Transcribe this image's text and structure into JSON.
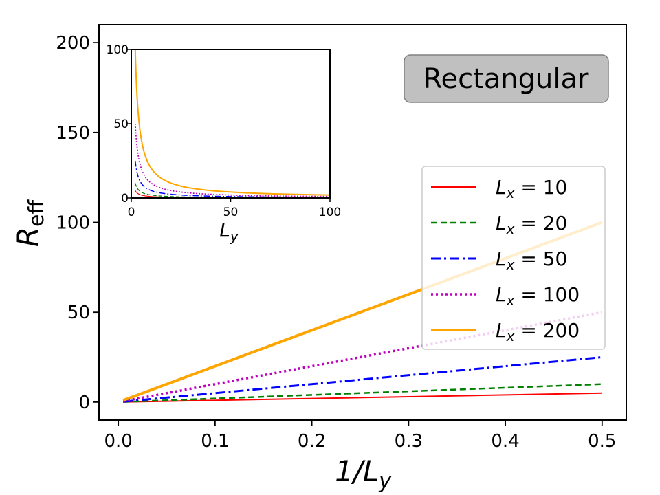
{
  "chart_data": [
    {
      "type": "line",
      "annotation": "Rectangular",
      "xlabel": "1/L",
      "xlabel_sub": "y",
      "ylabel": "R",
      "ylabel_sub": "eff",
      "xlim": [
        -0.02,
        0.525
      ],
      "ylim": [
        -10,
        210
      ],
      "xticks": [
        0.0,
        0.1,
        0.2,
        0.3,
        0.4,
        0.5
      ],
      "xtick_labels": [
        "0.0",
        "0.1",
        "0.2",
        "0.3",
        "0.4",
        "0.5"
      ],
      "yticks": [
        0,
        50,
        100,
        150,
        200
      ],
      "ytick_labels": [
        "0",
        "50",
        "100",
        "150",
        "200"
      ],
      "grid": false,
      "legend_position": "center-right",
      "x_range": [
        0.005,
        0.5
      ],
      "series": [
        {
          "label_var": "L",
          "label_sub": "x",
          "label_value": " = 10",
          "lx": 10,
          "color": "#ff0000",
          "dash": "",
          "width": 2
        },
        {
          "label_var": "L",
          "label_sub": "x",
          "label_value": " = 20",
          "lx": 20,
          "color": "#008000",
          "dash": "9,5",
          "width": 2.5
        },
        {
          "label_var": "L",
          "label_sub": "x",
          "label_value": " = 50",
          "lx": 50,
          "color": "#0000ff",
          "dash": "14,5,3,5",
          "width": 3
        },
        {
          "label_var": "L",
          "label_sub": "x",
          "label_value": " = 100",
          "lx": 100,
          "color": "#bf00bf",
          "dash": "3,4",
          "width": 3.5
        },
        {
          "label_var": "L",
          "label_sub": "x",
          "label_value": " = 200",
          "lx": 200,
          "color": "#ffa500",
          "dash": "",
          "width": 4
        }
      ],
      "relation": "R_eff = L_x / L_y"
    },
    {
      "type": "line",
      "role": "inset",
      "xlabel": "L",
      "xlabel_sub": "y",
      "xlim": [
        0,
        100
      ],
      "ylim": [
        0,
        100
      ],
      "xticks": [
        0,
        50,
        100
      ],
      "xtick_labels": [
        "0",
        "50",
        "100"
      ],
      "yticks": [
        0,
        50,
        100
      ],
      "ytick_labels": [
        "0",
        "50",
        "100"
      ],
      "x_range": [
        2,
        100
      ]
    }
  ]
}
